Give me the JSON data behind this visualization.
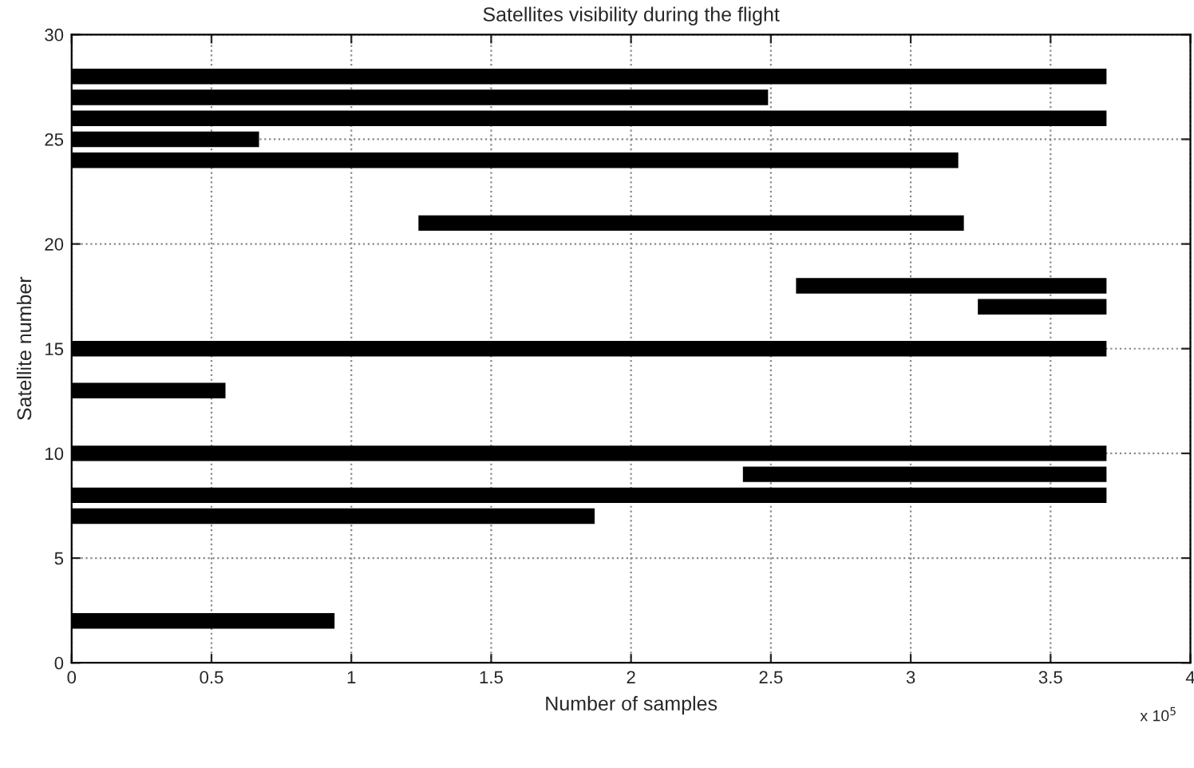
{
  "chart_data": {
    "type": "line",
    "title": "Satellites visibility during the flight",
    "xlabel": "Number of samples",
    "ylabel": "Satellite number",
    "annotations": [
      "x 10$^{5}$"
    ],
    "series": [
      {
        "color": "#000000",
        "x": [
          0,
          3.7
        ],
        "values": [
          28,
          28
        ]
      },
      {
        "color": "#000000",
        "x": [
          0,
          2.49
        ],
        "values": [
          27,
          27
        ]
      },
      {
        "color": "#000000",
        "x": [
          0,
          3.7
        ],
        "values": [
          26,
          26
        ]
      },
      {
        "color": "#000000",
        "x": [
          0,
          0.67
        ],
        "values": [
          25,
          25
        ]
      },
      {
        "color": "#000000",
        "x": [
          0,
          3.17
        ],
        "values": [
          24,
          24
        ]
      },
      {
        "color": "#000000",
        "x": [
          1.24,
          3.19
        ],
        "values": [
          21,
          21
        ]
      },
      {
        "color": "#000000",
        "x": [
          2.59,
          3.7
        ],
        "values": [
          18,
          18
        ]
      },
      {
        "color": "#000000",
        "x": [
          3.24,
          3.7
        ],
        "values": [
          17,
          17
        ]
      },
      {
        "color": "#000000",
        "x": [
          0,
          3.7
        ],
        "values": [
          15,
          15
        ]
      },
      {
        "color": "#000000",
        "x": [
          0,
          0.55
        ],
        "values": [
          13,
          13
        ]
      },
      {
        "color": "#000000",
        "x": [
          0,
          3.7
        ],
        "values": [
          10,
          10
        ]
      },
      {
        "color": "#000000",
        "x": [
          2.4,
          3.7
        ],
        "values": [
          9,
          9
        ]
      },
      {
        "color": "#000000",
        "x": [
          0,
          3.7
        ],
        "values": [
          8,
          8
        ]
      },
      {
        "color": "#000000",
        "x": [
          0,
          1.87
        ],
        "values": [
          7,
          7
        ]
      },
      {
        "color": "#000000",
        "x": [
          0,
          0.94
        ],
        "values": [
          2,
          2
        ]
      }
    ],
    "xlim": [
      0,
      4
    ],
    "xticks": [
      0,
      0.5,
      1,
      1.5,
      2,
      2.5,
      3,
      3.5,
      4
    ],
    "ylim": [
      0,
      30
    ],
    "yticks": [
      0,
      5,
      10,
      15,
      20,
      25,
      30
    ],
    "grid": true,
    "legend": false,
    "marker": "none",
    "line_style": "solid"
  }
}
